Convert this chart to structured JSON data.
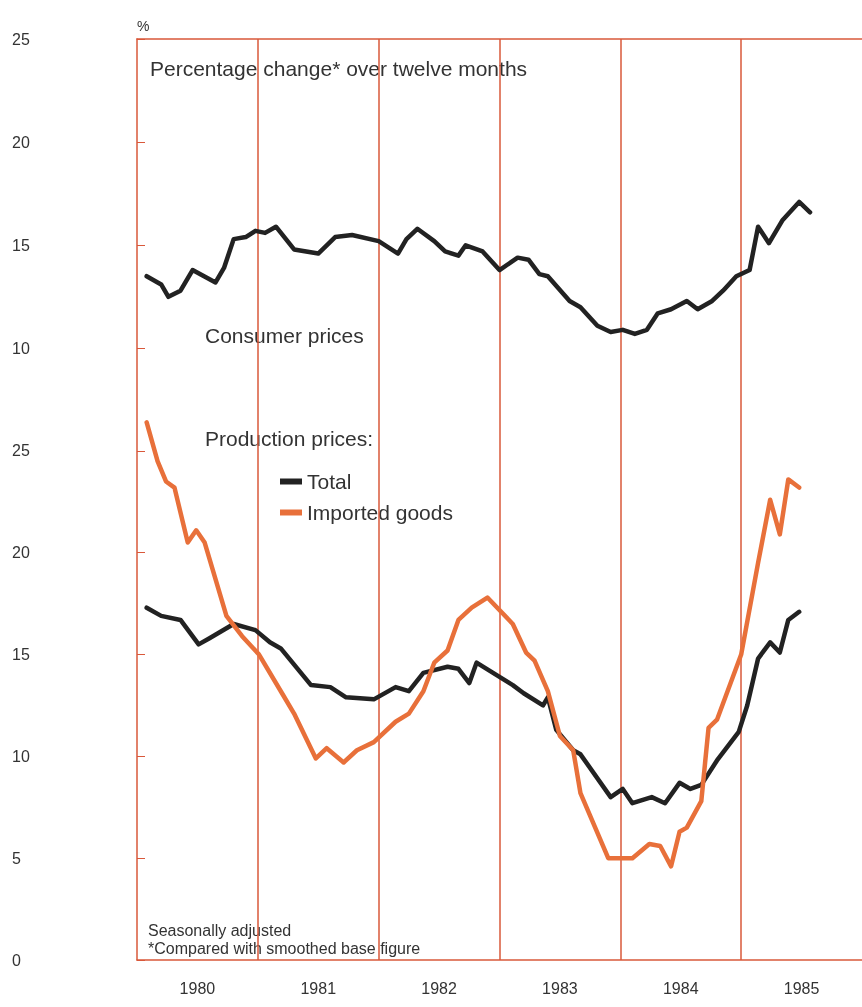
{
  "chart_data": [
    {
      "type": "line",
      "title": "Percentage change* over twelve months",
      "ylabel": "%",
      "xlim": [
        1980,
        1986
      ],
      "ylim": [
        7.5,
        25
      ],
      "yticks": [
        10,
        15,
        20,
        25
      ],
      "tick_labels": "y",
      "grid": false,
      "legend": false,
      "marker": "none",
      "line_style": "solid",
      "ref_lines": [
        {
          "axis": "x",
          "value": 1981,
          "label": null,
          "color": "#d9583a"
        },
        {
          "axis": "x",
          "value": 1982,
          "label": null,
          "color": "#d9583a"
        },
        {
          "axis": "x",
          "value": 1983,
          "label": null,
          "color": "#d9583a"
        },
        {
          "axis": "x",
          "value": 1984,
          "label": null,
          "color": "#d9583a"
        },
        {
          "axis": "x",
          "value": 1985,
          "label": null,
          "color": "#d9583a"
        }
      ],
      "series": [
        {
          "name": "Consumer prices",
          "color": "#222222",
          "x": [
            1980.08,
            1980.2,
            1980.26,
            1980.36,
            1980.46,
            1980.65,
            1980.72,
            1980.8,
            1980.9,
            1980.98,
            1981.06,
            1981.15,
            1981.3,
            1981.5,
            1981.64,
            1981.78,
            1982.0,
            1982.16,
            1982.23,
            1982.32,
            1982.46,
            1982.55,
            1982.66,
            1982.72,
            1982.86,
            1983.0,
            1983.15,
            1983.24,
            1983.33,
            1983.4,
            1983.58,
            1983.67,
            1983.81,
            1983.92,
            1984.02,
            1984.12,
            1984.22,
            1984.31,
            1984.42,
            1984.55,
            1984.64,
            1984.76,
            1984.85,
            1984.96,
            1985.07,
            1985.14,
            1985.23,
            1985.34,
            1985.48,
            1985.57
          ],
          "values": [
            13.5,
            13.1,
            12.5,
            12.8,
            13.8,
            13.2,
            13.9,
            15.3,
            15.4,
            15.7,
            15.6,
            15.9,
            14.8,
            14.6,
            15.4,
            15.5,
            15.2,
            14.6,
            15.3,
            15.8,
            15.2,
            14.7,
            14.5,
            15.0,
            14.7,
            13.8,
            14.4,
            14.3,
            13.6,
            13.5,
            12.3,
            12.0,
            11.1,
            10.8,
            10.9,
            10.7,
            10.9,
            11.7,
            11.9,
            12.3,
            11.9,
            12.3,
            12.8,
            13.5,
            13.8,
            15.9,
            15.1,
            16.2,
            17.1,
            16.6
          ]
        }
      ]
    },
    {
      "type": "line",
      "legend_title": "Production prices:",
      "xlim": [
        1980,
        1986
      ],
      "ylim": [
        0,
        27.5
      ],
      "yticks": [
        0,
        5,
        10,
        15,
        20,
        25
      ],
      "xticks": [
        {
          "value": 1980.5,
          "label": "1980"
        },
        {
          "value": 1981.5,
          "label": "1981"
        },
        {
          "value": 1982.5,
          "label": "1982"
        },
        {
          "value": 1983.5,
          "label": "1983"
        },
        {
          "value": 1984.5,
          "label": "1984"
        },
        {
          "value": 1985.5,
          "label": "1985"
        }
      ],
      "grid": false,
      "legend": "top left",
      "marker": "none",
      "line_style": "solid",
      "annotations": [
        "Seasonally adjusted",
        "*Compared with smoothed base figure"
      ],
      "ref_lines": [
        {
          "axis": "x",
          "value": 1981,
          "label": null,
          "color": "#d9583a"
        },
        {
          "axis": "x",
          "value": 1982,
          "label": null,
          "color": "#d9583a"
        },
        {
          "axis": "x",
          "value": 1983,
          "label": null,
          "color": "#d9583a"
        },
        {
          "axis": "x",
          "value": 1984,
          "label": null,
          "color": "#d9583a"
        },
        {
          "axis": "x",
          "value": 1985,
          "label": null,
          "color": "#d9583a"
        }
      ],
      "series": [
        {
          "name": "Total",
          "color": "#222222",
          "x": [
            1980.08,
            1980.2,
            1980.36,
            1980.51,
            1980.6,
            1980.8,
            1980.98,
            1981.1,
            1981.19,
            1981.44,
            1981.6,
            1981.73,
            1981.96,
            1982.14,
            1982.25,
            1982.37,
            1982.57,
            1982.66,
            1982.75,
            1982.81,
            1983.0,
            1983.11,
            1983.2,
            1983.36,
            1983.4,
            1983.47,
            1983.61,
            1983.67,
            1983.92,
            1984.02,
            1984.1,
            1984.26,
            1984.37,
            1984.49,
            1984.58,
            1984.67,
            1984.8,
            1984.98,
            1985.05,
            1985.14,
            1985.24,
            1985.32,
            1985.39,
            1985.48
          ],
          "values": [
            17.3,
            16.9,
            16.7,
            15.5,
            15.8,
            16.5,
            16.2,
            15.6,
            15.3,
            13.5,
            13.4,
            12.9,
            12.8,
            13.4,
            13.2,
            14.1,
            14.4,
            14.3,
            13.6,
            14.6,
            13.9,
            13.5,
            13.1,
            12.5,
            12.9,
            11.3,
            10.3,
            10.1,
            8.0,
            8.4,
            7.7,
            8.0,
            7.7,
            8.7,
            8.4,
            8.6,
            9.8,
            11.2,
            12.5,
            14.8,
            15.6,
            15.1,
            16.7,
            17.1
          ]
        },
        {
          "name": "Imported goods",
          "color": "#e8703a",
          "x": [
            1980.08,
            1980.17,
            1980.24,
            1980.31,
            1980.42,
            1980.49,
            1980.56,
            1980.74,
            1980.87,
            1981.01,
            1981.21,
            1981.3,
            1981.48,
            1981.57,
            1981.71,
            1981.82,
            1981.96,
            1982.14,
            1982.25,
            1982.37,
            1982.46,
            1982.57,
            1982.66,
            1982.77,
            1982.9,
            1983.11,
            1983.22,
            1983.29,
            1983.4,
            1983.5,
            1983.61,
            1983.67,
            1983.9,
            1984.1,
            1984.24,
            1984.33,
            1984.42,
            1984.49,
            1984.55,
            1984.67,
            1984.73,
            1984.8,
            1985.0,
            1985.14,
            1985.24,
            1985.32,
            1985.39,
            1985.48
          ],
          "values": [
            26.4,
            24.5,
            23.5,
            23.2,
            20.5,
            21.1,
            20.5,
            16.9,
            15.9,
            15.0,
            13.0,
            12.1,
            9.9,
            10.4,
            9.7,
            10.3,
            10.7,
            11.7,
            12.1,
            13.2,
            14.6,
            15.2,
            16.7,
            17.3,
            17.8,
            16.5,
            15.1,
            14.7,
            13.2,
            11.0,
            10.3,
            8.2,
            5.0,
            5.0,
            5.7,
            5.6,
            4.6,
            6.3,
            6.5,
            7.8,
            11.4,
            11.8,
            15.0,
            19.5,
            22.6,
            20.9,
            23.6,
            23.2
          ]
        }
      ]
    }
  ]
}
